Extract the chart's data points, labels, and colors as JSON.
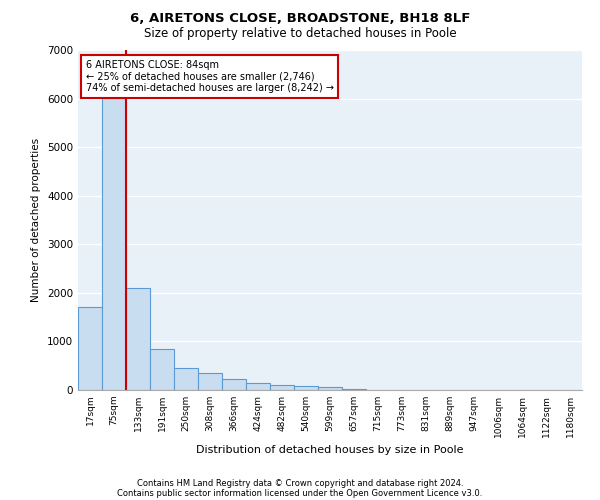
{
  "title1": "6, AIRETONS CLOSE, BROADSTONE, BH18 8LF",
  "title2": "Size of property relative to detached houses in Poole",
  "xlabel": "Distribution of detached houses by size in Poole",
  "ylabel": "Number of detached properties",
  "footnote1": "Contains HM Land Registry data © Crown copyright and database right 2024.",
  "footnote2": "Contains public sector information licensed under the Open Government Licence v3.0.",
  "bar_color": "#c9ddf0",
  "bar_edge_color": "#5b9bd5",
  "annotation_box_color": "#cc0000",
  "vline_color": "#cc0000",
  "categories": [
    "17sqm",
    "75sqm",
    "133sqm",
    "191sqm",
    "250sqm",
    "308sqm",
    "366sqm",
    "424sqm",
    "482sqm",
    "540sqm",
    "599sqm",
    "657sqm",
    "715sqm",
    "773sqm",
    "831sqm",
    "889sqm",
    "947sqm",
    "1006sqm",
    "1064sqm",
    "1122sqm",
    "1180sqm"
  ],
  "values": [
    1700,
    6200,
    2100,
    850,
    450,
    350,
    220,
    150,
    100,
    80,
    55,
    20,
    10,
    5,
    3,
    2,
    1,
    1,
    0,
    0,
    0
  ],
  "ylim": [
    0,
    7000
  ],
  "yticks": [
    0,
    1000,
    2000,
    3000,
    4000,
    5000,
    6000,
    7000
  ],
  "property_label": "6 AIRETONS CLOSE: 84sqm",
  "pct_smaller": "25% of detached houses are smaller (2,746)",
  "pct_larger": "74% of semi-detached houses are larger (8,242)",
  "vline_x_index": 1,
  "background_color": "#e8f0f8",
  "grid_color": "#ffffff"
}
